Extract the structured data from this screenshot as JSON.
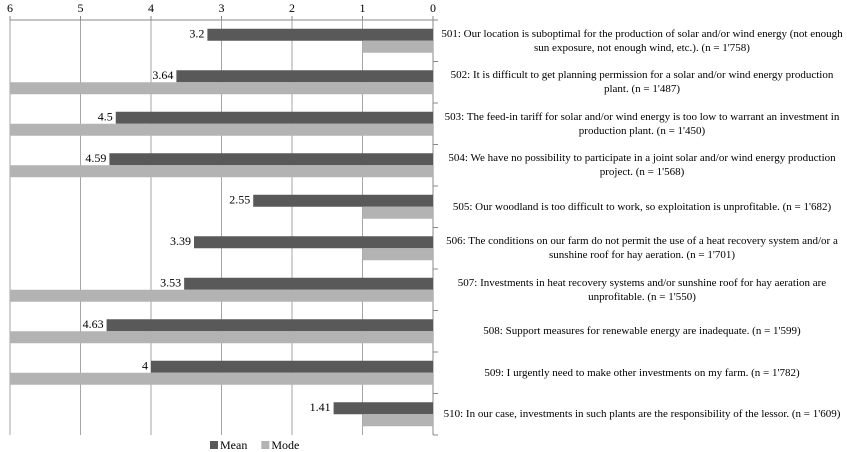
{
  "chart_data": {
    "type": "bar",
    "orientation": "horizontal",
    "x_reversed": true,
    "categories": [
      "501: Our location is suboptimal for the production of solar and/or wind energy (not enough sun exposure, not enough wind, etc.). (n = 1'758)",
      "502: It is difficult to get planning permission for a solar and/or wind energy production plant. (n = 1'487)",
      "503: The feed-in tariff for solar and/or wind energy is too low to warrant an investment in production plant. (n = 1'450)",
      "504: We have no possibility to participate in a joint solar and/or wind energy production project. (n = 1'568)",
      "505: Our woodland is too difficult to work, so exploitation is unprofitable. (n = 1'682)",
      "506: The conditions on our farm do not permit the use of a heat recovery system and/or a sunshine roof for hay aeration. (n = 1'701)",
      "507: Investments in heat recovery systems and/or sunshine roof for hay aeration are unprofitable. (n = 1'550)",
      "508: Support measures for renewable energy are inadequate. (n = 1'599)",
      "509: I urgently need to make other investments on my farm. (n = 1'782)",
      "510: In our case, investments in such plants are the responsibility of the lessor. (n = 1'609)"
    ],
    "series": [
      {
        "name": "Mean",
        "color": "#595959",
        "values": [
          3.2,
          3.64,
          4.5,
          4.59,
          2.55,
          3.39,
          3.53,
          4.63,
          4,
          1.41
        ],
        "data_labels": true
      },
      {
        "name": "Mode",
        "color": "#b3b3b3",
        "values": [
          1,
          6,
          6,
          6,
          1,
          1,
          6,
          6,
          6,
          1
        ],
        "data_labels": false
      }
    ],
    "xlim": [
      0,
      6
    ],
    "xticks": [
      0,
      1,
      2,
      3,
      4,
      5,
      6
    ],
    "grid": true,
    "legend": "bottom"
  }
}
